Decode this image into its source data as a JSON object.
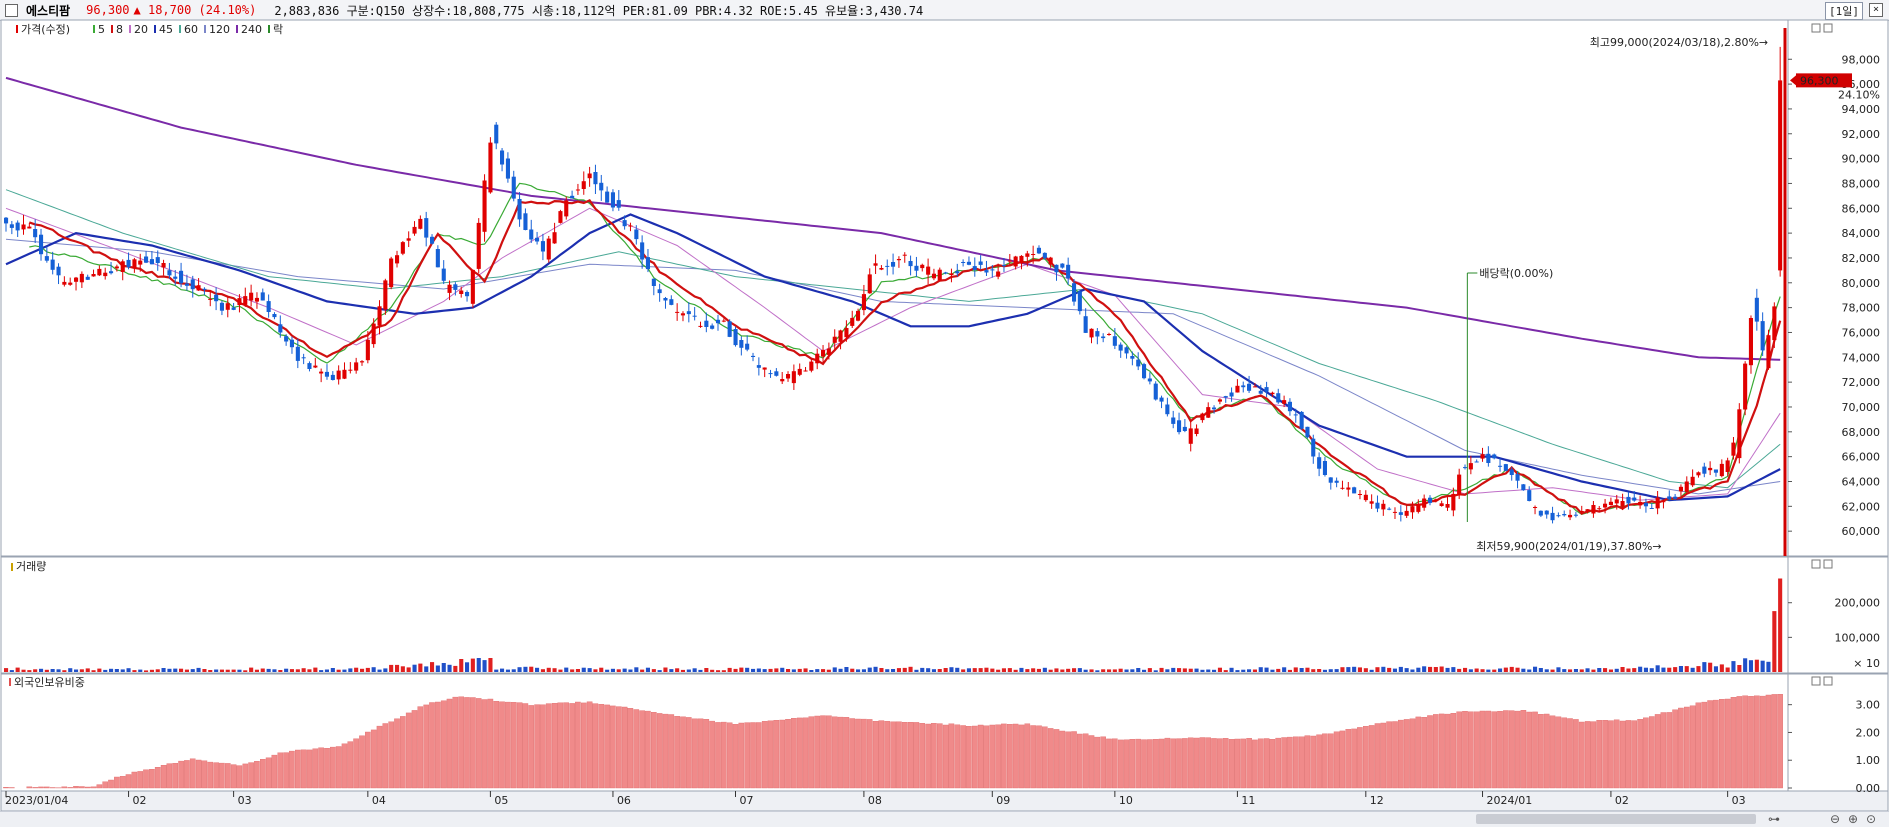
{
  "header": {
    "stock_name": "에스티팜",
    "price": "96,300",
    "change": "▲ 18,700 (24.10%)",
    "info": "2,883,836  구분:Q150 상장수:18,808,775 시총:18,112억 PER:81.09 PBR:4.32 ROE:5.45 유보율:3,430.74",
    "period": "[1일]",
    "close_glyph": "×"
  },
  "colors": {
    "up": "#e00000",
    "down": "#1560d6",
    "ma5": "#3aaa35",
    "ma8": "#d01010",
    "ma20": "#c070c8",
    "ma45": "#1c2fb0",
    "ma60": "#4aa896",
    "ma120": "#7b86c9",
    "ma240": "#7a2aa8",
    "vol_up": "#e02020",
    "vol_down": "#2050c8",
    "foreign": "#f08a8a"
  },
  "chart_data": [
    {
      "type": "candlestick",
      "title": "",
      "legend": [
        {
          "label": "가격(수정)",
          "color": "#e00000"
        },
        {
          "label": "5",
          "color": "#3aaa35"
        },
        {
          "label": "8",
          "color": "#d01010"
        },
        {
          "label": "20",
          "color": "#c070c8"
        },
        {
          "label": "45",
          "color": "#1c2fb0"
        },
        {
          "label": "60",
          "color": "#4aa896"
        },
        {
          "label": "120",
          "color": "#7b86c9"
        },
        {
          "label": "240",
          "color": "#7a2aa8"
        },
        {
          "label": "락",
          "color": "#2a8a2a"
        }
      ],
      "ylim": [
        58000,
        101000
      ],
      "y_ticks": [
        "60,000",
        "62,000",
        "64,000",
        "66,000",
        "68,000",
        "70,000",
        "72,000",
        "74,000",
        "76,000",
        "78,000",
        "80,000",
        "82,000",
        "84,000",
        "86,000",
        "88,000",
        "90,000",
        "92,000",
        "94,000",
        "96,000",
        "98,000"
      ],
      "x_tick_labels": [
        "2023/01/04",
        "02",
        "03",
        "04",
        "05",
        "06",
        "07",
        "08",
        "09",
        "10",
        "11",
        "12",
        "2024/01",
        "02",
        "03"
      ],
      "x_tick_index": [
        0,
        21,
        39,
        62,
        83,
        104,
        125,
        147,
        169,
        190,
        211,
        233,
        253,
        275,
        295
      ],
      "n_days": 305,
      "anchors": [
        [
          0,
          85000
        ],
        [
          5,
          84000
        ],
        [
          10,
          80000
        ],
        [
          18,
          81000
        ],
        [
          25,
          82000
        ],
        [
          32,
          80000
        ],
        [
          38,
          78000
        ],
        [
          44,
          79000
        ],
        [
          49,
          75000
        ],
        [
          53,
          73000
        ],
        [
          57,
          72500
        ],
        [
          62,
          74000
        ],
        [
          67,
          82000
        ],
        [
          72,
          85000
        ],
        [
          76,
          79500
        ],
        [
          80,
          79000
        ],
        [
          84,
          92000
        ],
        [
          89,
          85000
        ],
        [
          93,
          82500
        ],
        [
          97,
          87000
        ],
        [
          101,
          88500
        ],
        [
          105,
          86000
        ],
        [
          108,
          84000
        ],
        [
          112,
          79000
        ],
        [
          118,
          77000
        ],
        [
          124,
          76500
        ],
        [
          128,
          74000
        ],
        [
          133,
          72000
        ],
        [
          138,
          73000
        ],
        [
          142,
          75000
        ],
        [
          146,
          77000
        ],
        [
          149,
          81000
        ],
        [
          154,
          82000
        ],
        [
          160,
          80500
        ],
        [
          165,
          81500
        ],
        [
          170,
          81000
        ],
        [
          176,
          82500
        ],
        [
          182,
          81000
        ],
        [
          186,
          76000
        ],
        [
          190,
          75500
        ],
        [
          195,
          73000
        ],
        [
          199,
          70000
        ],
        [
          203,
          67500
        ],
        [
          207,
          70000
        ],
        [
          212,
          71500
        ],
        [
          218,
          71000
        ],
        [
          222,
          69000
        ],
        [
          227,
          64000
        ],
        [
          232,
          63000
        ],
        [
          236,
          62000
        ],
        [
          240,
          61500
        ],
        [
          244,
          62500
        ],
        [
          248,
          62000
        ],
        [
          250,
          65000
        ],
        [
          254,
          66000
        ],
        [
          258,
          65000
        ],
        [
          262,
          62000
        ],
        [
          266,
          61000
        ],
        [
          270,
          61500
        ],
        [
          274,
          62000
        ],
        [
          278,
          62500
        ],
        [
          282,
          62000
        ],
        [
          287,
          63000
        ],
        [
          291,
          65000
        ],
        [
          294,
          64500
        ],
        [
          297,
          67000
        ],
        [
          300,
          78000
        ],
        [
          302,
          74000
        ],
        [
          304,
          79000
        ]
      ],
      "last_candle": {
        "open": 81000,
        "high": 99000,
        "low": 80500,
        "close": 96300
      },
      "ma_lines": [
        {
          "name": "5",
          "pts": [
            [
              4,
              83000
            ],
            [
              20,
              81000
            ],
            [
              40,
              78000
            ],
            [
              55,
              73500
            ],
            [
              66,
              78000
            ],
            [
              74,
              84000
            ],
            [
              82,
              83000
            ],
            [
              88,
              88000
            ],
            [
              100,
              86500
            ],
            [
              112,
              80000
            ],
            [
              125,
              76000
            ],
            [
              140,
              74000
            ],
            [
              150,
              80000
            ],
            [
              165,
              81000
            ],
            [
              178,
              82000
            ],
            [
              190,
              76000
            ],
            [
              203,
              69000
            ],
            [
              215,
              71000
            ],
            [
              226,
              66000
            ],
            [
              240,
              62000
            ],
            [
              250,
              63500
            ],
            [
              258,
              65000
            ],
            [
              270,
              61500
            ],
            [
              285,
              62500
            ],
            [
              295,
              64500
            ],
            [
              300,
              73000
            ],
            [
              304,
              79000
            ]
          ]
        },
        {
          "name": "8",
          "pts": [
            [
              4,
              85000
            ],
            [
              20,
              81500
            ],
            [
              40,
              78500
            ],
            [
              55,
              74000
            ],
            [
              66,
              77000
            ],
            [
              74,
              84000
            ],
            [
              82,
              80000
            ],
            [
              88,
              86500
            ],
            [
              100,
              86500
            ],
            [
              112,
              81000
            ],
            [
              125,
              76500
            ],
            [
              140,
              73500
            ],
            [
              150,
              78500
            ],
            [
              165,
              81000
            ],
            [
              178,
              82000
            ],
            [
              190,
              77500
            ],
            [
              203,
              69000
            ],
            [
              215,
              71000
            ],
            [
              226,
              66500
            ],
            [
              240,
              62000
            ],
            [
              250,
              63000
            ],
            [
              258,
              65000
            ],
            [
              270,
              61500
            ],
            [
              285,
              62500
            ],
            [
              295,
              64000
            ],
            [
              300,
              70000
            ],
            [
              304,
              77000
            ]
          ]
        },
        {
          "name": "20",
          "pts": [
            [
              0,
              86000
            ],
            [
              20,
              82500
            ],
            [
              45,
              78000
            ],
            [
              60,
              75000
            ],
            [
              75,
              78500
            ],
            [
              85,
              82000
            ],
            [
              100,
              86000
            ],
            [
              115,
              83000
            ],
            [
              130,
              78000
            ],
            [
              140,
              74500
            ],
            [
              155,
              78000
            ],
            [
              175,
              81500
            ],
            [
              190,
              79000
            ],
            [
              205,
              71000
            ],
            [
              220,
              70000
            ],
            [
              235,
              65000
            ],
            [
              250,
              63000
            ],
            [
              265,
              63500
            ],
            [
              280,
              62500
            ],
            [
              295,
              63000
            ],
            [
              304,
              69500
            ]
          ]
        },
        {
          "name": "45",
          "pts": [
            [
              0,
              81500
            ],
            [
              12,
              84000
            ],
            [
              25,
              83000
            ],
            [
              40,
              81000
            ],
            [
              55,
              78500
            ],
            [
              70,
              77500
            ],
            [
              80,
              78000
            ],
            [
              90,
              80500
            ],
            [
              100,
              84000
            ],
            [
              107,
              85500
            ],
            [
              115,
              84000
            ],
            [
              130,
              80500
            ],
            [
              145,
              78500
            ],
            [
              155,
              76500
            ],
            [
              165,
              76500
            ],
            [
              175,
              77500
            ],
            [
              185,
              79500
            ],
            [
              195,
              78500
            ],
            [
              205,
              74500
            ],
            [
              215,
              71500
            ],
            [
              225,
              68500
            ],
            [
              240,
              66000
            ],
            [
              255,
              66000
            ],
            [
              270,
              64000
            ],
            [
              285,
              62500
            ],
            [
              295,
              62800
            ],
            [
              304,
              65000
            ]
          ]
        },
        {
          "name": "60",
          "pts": [
            [
              0,
              87500
            ],
            [
              20,
              84000
            ],
            [
              45,
              80500
            ],
            [
              65,
              79500
            ],
            [
              85,
              80500
            ],
            [
              105,
              82500
            ],
            [
              125,
              80500
            ],
            [
              145,
              79500
            ],
            [
              165,
              78500
            ],
            [
              185,
              79500
            ],
            [
              205,
              77500
            ],
            [
              225,
              73500
            ],
            [
              245,
              70500
            ],
            [
              265,
              67000
            ],
            [
              285,
              64000
            ],
            [
              295,
              63500
            ],
            [
              304,
              67000
            ]
          ]
        },
        {
          "name": "120",
          "pts": [
            [
              0,
              83500
            ],
            [
              25,
              82500
            ],
            [
              50,
              80500
            ],
            [
              75,
              79500
            ],
            [
              100,
              81500
            ],
            [
              125,
              81000
            ],
            [
              150,
              78500
            ],
            [
              175,
              78000
            ],
            [
              200,
              77500
            ],
            [
              225,
              72500
            ],
            [
              250,
              66500
            ],
            [
              270,
              64500
            ],
            [
              290,
              63000
            ],
            [
              304,
              64000
            ]
          ]
        },
        {
          "name": "240",
          "pts": [
            [
              0,
              96500
            ],
            [
              30,
              92500
            ],
            [
              60,
              89500
            ],
            [
              90,
              87000
            ],
            [
              120,
              85500
            ],
            [
              150,
              84000
            ],
            [
              180,
              81000
            ],
            [
              210,
              79500
            ],
            [
              240,
              78000
            ],
            [
              270,
              75500
            ],
            [
              290,
              74000
            ],
            [
              304,
              73800
            ]
          ]
        }
      ],
      "annotations": {
        "high": "최고99,000(2024/03/18),2.80%→",
        "low": "최저59,900(2024/01/19),37.80%→",
        "dividend": "배당락(0.00%)",
        "dividend_index": 248,
        "price_tag": "96,300",
        "pct_tag": "24.10%"
      }
    },
    {
      "type": "bar",
      "title": "거래량",
      "y_ticks": [
        "200,000",
        "100,000"
      ],
      "multiplier_label": "× 10",
      "ylim": [
        0,
        280000
      ],
      "profile": [
        [
          0,
          9000
        ],
        [
          20,
          8000
        ],
        [
          62,
          9500
        ],
        [
          83,
          35000
        ],
        [
          84,
          12000
        ],
        [
          125,
          9000
        ],
        [
          147,
          11000
        ],
        [
          190,
          8000
        ],
        [
          253,
          12000
        ],
        [
          275,
          9000
        ],
        [
          290,
          20000
        ],
        [
          297,
          25000
        ],
        [
          302,
          45000
        ],
        [
          304,
          270000
        ]
      ]
    },
    {
      "type": "bar",
      "title": "외국인보유비중",
      "y_ticks": [
        "3.00",
        "2.00",
        "1.00",
        "0.00"
      ],
      "ylim": [
        0,
        3.6
      ],
      "profile": [
        [
          0,
          0.0
        ],
        [
          15,
          0.05
        ],
        [
          20,
          0.45
        ],
        [
          32,
          1.05
        ],
        [
          40,
          0.8
        ],
        [
          48,
          1.3
        ],
        [
          57,
          1.5
        ],
        [
          65,
          2.3
        ],
        [
          72,
          3.0
        ],
        [
          78,
          3.3
        ],
        [
          90,
          3.0
        ],
        [
          100,
          3.1
        ],
        [
          115,
          2.6
        ],
        [
          125,
          2.3
        ],
        [
          140,
          2.6
        ],
        [
          150,
          2.4
        ],
        [
          165,
          2.25
        ],
        [
          175,
          2.3
        ],
        [
          190,
          1.75
        ],
        [
          205,
          1.8
        ],
        [
          215,
          1.75
        ],
        [
          225,
          1.9
        ],
        [
          240,
          2.5
        ],
        [
          250,
          2.75
        ],
        [
          260,
          2.8
        ],
        [
          270,
          2.4
        ],
        [
          280,
          2.45
        ],
        [
          290,
          3.05
        ],
        [
          297,
          3.3
        ],
        [
          304,
          3.35
        ]
      ]
    }
  ]
}
